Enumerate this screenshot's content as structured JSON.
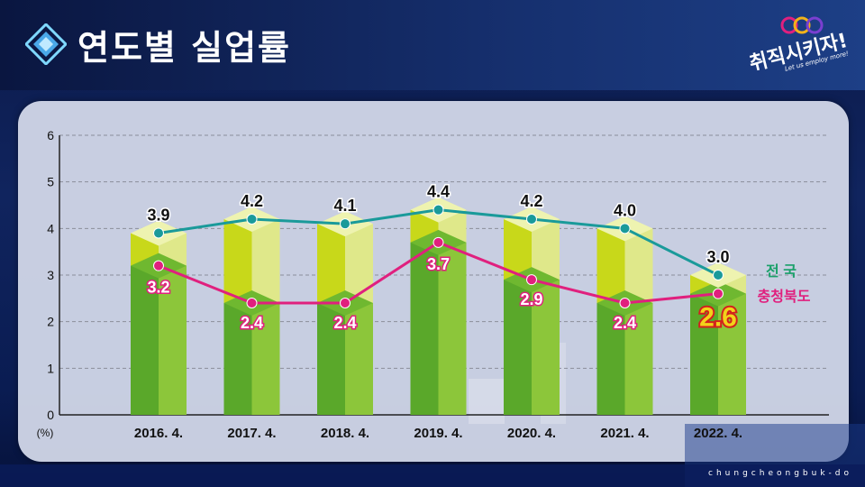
{
  "header": {
    "title": "연도별 실업률"
  },
  "logo": {
    "main_text": "취직시키자!",
    "sub_text": "Let us employ more!"
  },
  "footer": {
    "text": "chungcheongbuk-do"
  },
  "colors": {
    "national_line": "#1a9a9a",
    "chungbuk_line": "#e0207e",
    "national_label": "#1aa06a",
    "chungbuk_label": "#e0207e",
    "bar_light": "#c8d81a",
    "bar_dark": "#5aa82a",
    "highlight_label": "#f2d21a"
  },
  "chart_data": {
    "type": "bar",
    "categories": [
      "2016. 4.",
      "2017. 4.",
      "2018. 4.",
      "2019. 4.",
      "2020. 4.",
      "2021. 4.",
      "2022. 4."
    ],
    "series": [
      {
        "name": "전 국",
        "values": [
          3.9,
          4.2,
          4.1,
          4.4,
          4.2,
          4.0,
          3.0
        ]
      },
      {
        "name": "충청북도",
        "values": [
          3.2,
          2.4,
          2.4,
          3.7,
          2.9,
          2.4,
          2.6
        ]
      }
    ],
    "ylabel": "(%)",
    "ylim": [
      0,
      6
    ],
    "yticks": [
      0,
      1,
      2,
      3,
      4,
      5,
      6
    ],
    "grid": true,
    "legend": "right"
  }
}
